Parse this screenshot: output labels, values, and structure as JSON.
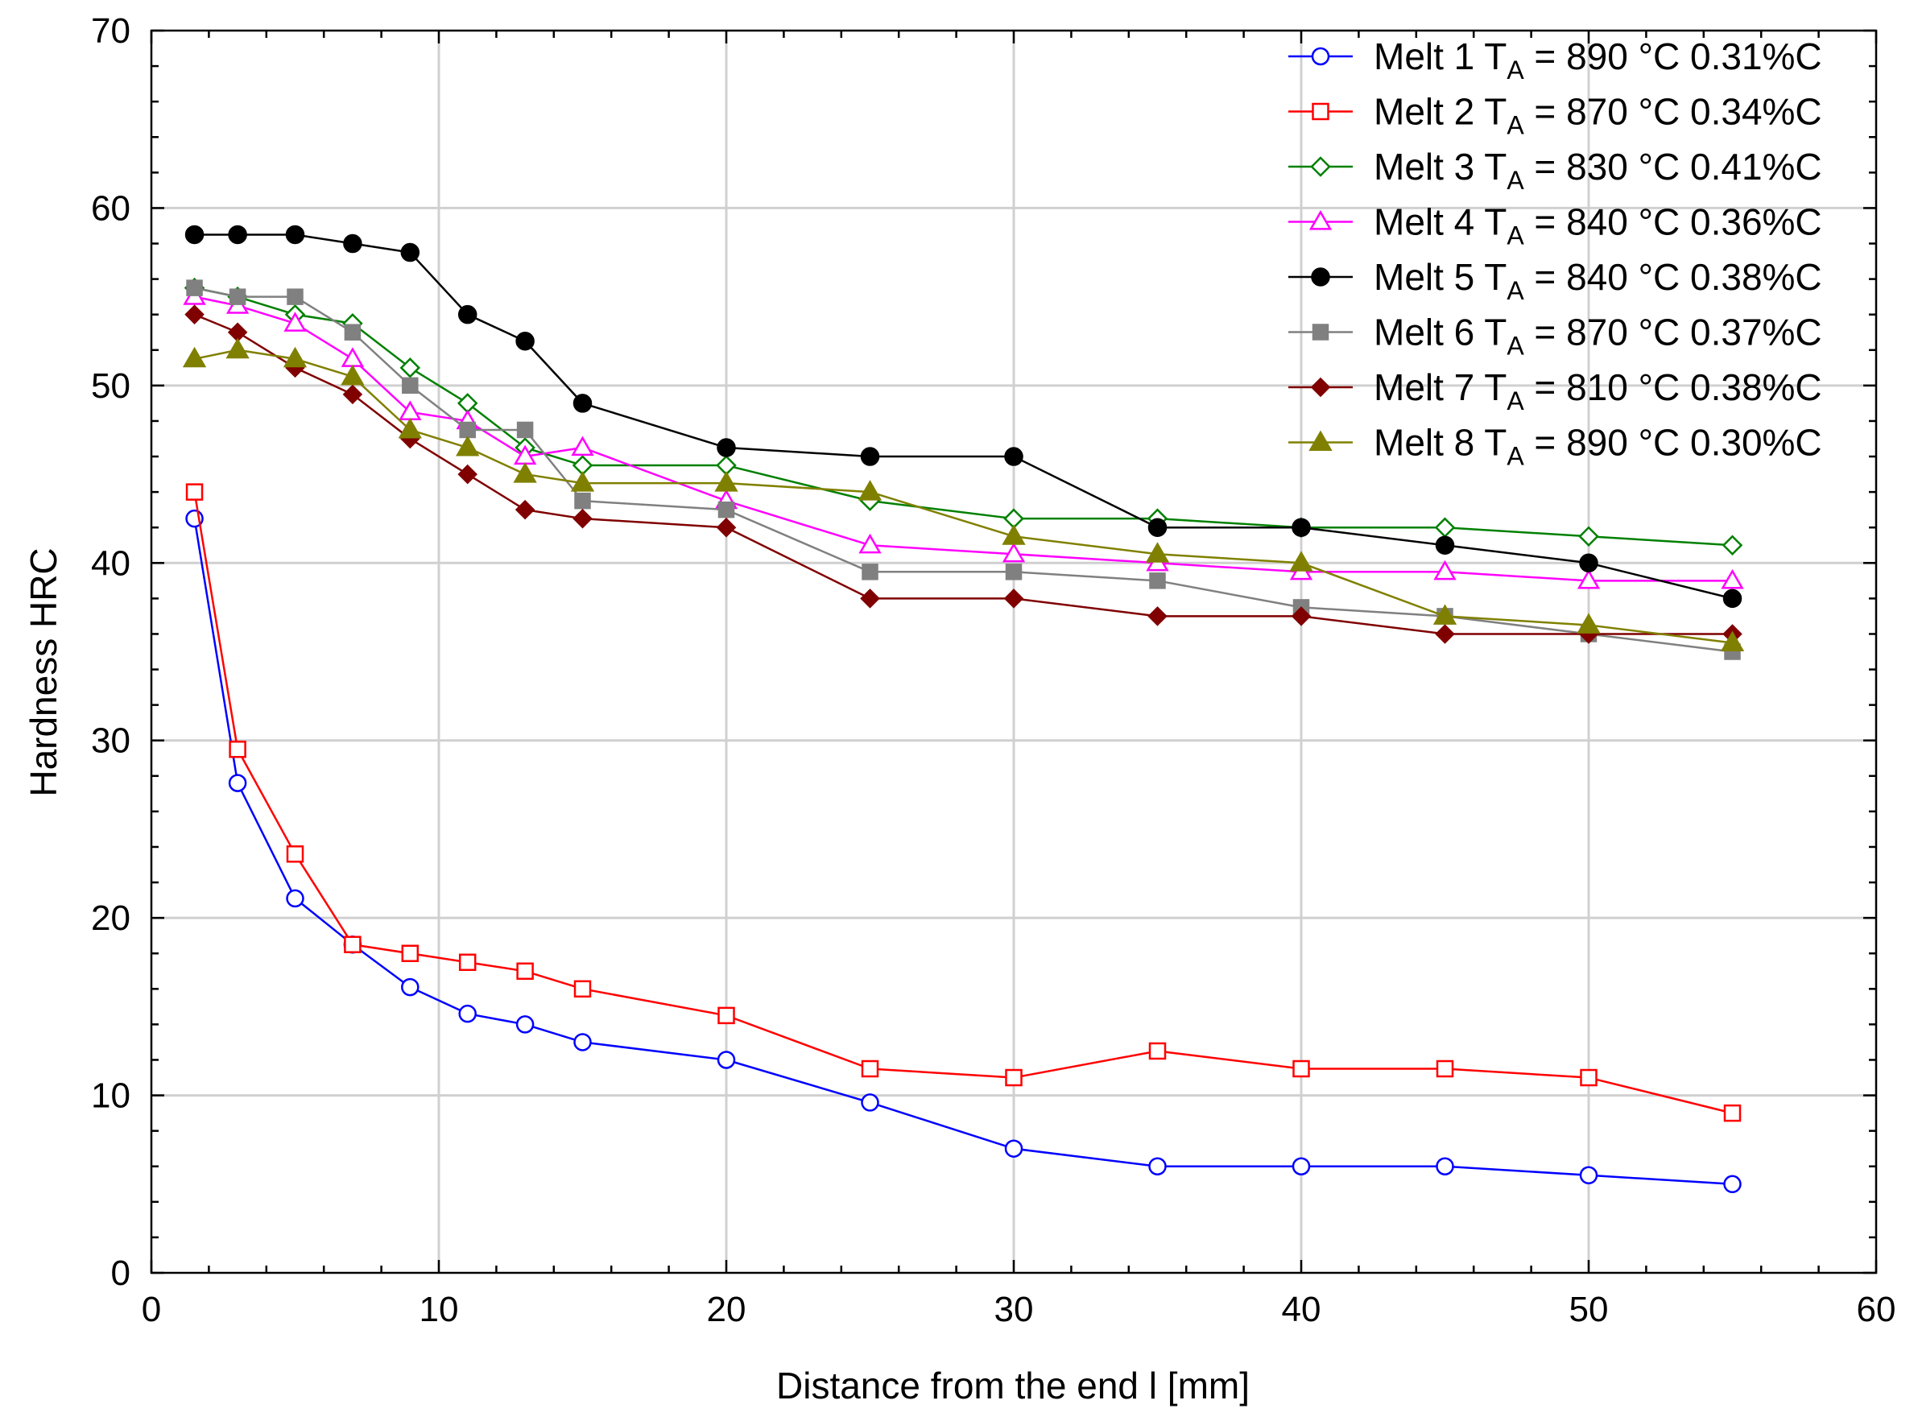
{
  "chart_data": {
    "type": "line",
    "title": "",
    "xlabel": "Distance from the end l [mm]",
    "ylabel": "Hardness HRC",
    "xlim": [
      0,
      60
    ],
    "ylim": [
      0,
      70
    ],
    "xticks": [
      0,
      10,
      20,
      30,
      40,
      50,
      60
    ],
    "yticks": [
      0,
      10,
      20,
      30,
      40,
      50,
      60,
      70
    ],
    "grid": true,
    "legend_position": "top-right",
    "x": [
      1.5,
      3,
      5,
      7,
      9,
      11,
      13,
      15,
      20,
      25,
      30,
      35,
      40,
      45,
      50,
      55
    ],
    "series": [
      {
        "name": "Melt 1",
        "legend_prefix": "Melt 1 T",
        "legend_sub": "A",
        "legend_suffix": " = 890 °C 0.31%C",
        "color": "#0000ff",
        "marker": "circle-open",
        "values": [
          42.5,
          27.6,
          21.1,
          18.5,
          16.1,
          14.6,
          14.0,
          13.0,
          12.0,
          9.6,
          7.0,
          6.0,
          6.0,
          6.0,
          5.5,
          5.0
        ]
      },
      {
        "name": "Melt 2",
        "legend_prefix": "Melt 2 T",
        "legend_sub": "A",
        "legend_suffix": " = 870 °C 0.34%C",
        "color": "#ff0000",
        "marker": "square-open",
        "values": [
          44.0,
          29.5,
          23.6,
          18.5,
          18.0,
          17.5,
          17.0,
          16.0,
          14.5,
          11.5,
          11.0,
          12.5,
          11.5,
          11.5,
          11.0,
          9.0
        ]
      },
      {
        "name": "Melt 3",
        "legend_prefix": "Melt 3 T",
        "legend_sub": "A",
        "legend_suffix": " = 830 °C 0.41%C",
        "color": "#008000",
        "marker": "diamond-open",
        "values": [
          55.5,
          55.0,
          54.0,
          53.5,
          51.0,
          49.0,
          46.5,
          45.5,
          45.5,
          43.5,
          42.5,
          42.5,
          42.0,
          42.0,
          41.5,
          41.0
        ]
      },
      {
        "name": "Melt 4",
        "legend_prefix": "Melt 4 T",
        "legend_sub": "A",
        "legend_suffix": " = 840 °C 0.36%C",
        "color": "#ff00ff",
        "marker": "triangle-open",
        "values": [
          55.0,
          54.5,
          53.5,
          51.5,
          48.5,
          48.0,
          46.0,
          46.5,
          43.5,
          41.0,
          40.5,
          40.0,
          39.5,
          39.5,
          39.0,
          39.0
        ]
      },
      {
        "name": "Melt 5",
        "legend_prefix": "Melt 5 T",
        "legend_sub": "A",
        "legend_suffix": " = 840 °C 0.38%C",
        "color": "#000000",
        "marker": "circle-filled",
        "values": [
          58.5,
          58.5,
          58.5,
          58.0,
          57.5,
          54.0,
          52.5,
          49.0,
          46.5,
          46.0,
          46.0,
          42.0,
          42.0,
          41.0,
          40.0,
          38.0
        ]
      },
      {
        "name": "Melt 6",
        "legend_prefix": "Melt 6 T",
        "legend_sub": "A",
        "legend_suffix": " = 870 °C 0.37%C",
        "color": "#808080",
        "marker": "square-filled",
        "values": [
          55.5,
          55.0,
          55.0,
          53.0,
          50.0,
          47.5,
          47.5,
          43.5,
          43.0,
          39.5,
          39.5,
          39.0,
          37.5,
          37.0,
          36.0,
          35.0
        ]
      },
      {
        "name": "Melt 7",
        "legend_prefix": "Melt 7 T",
        "legend_sub": "A",
        "legend_suffix": " = 810 °C 0.38%C",
        "color": "#800000",
        "marker": "diamond-filled",
        "values": [
          54.0,
          53.0,
          51.0,
          49.5,
          47.0,
          45.0,
          43.0,
          42.5,
          42.0,
          38.0,
          38.0,
          37.0,
          37.0,
          36.0,
          36.0,
          36.0
        ]
      },
      {
        "name": "Melt 8",
        "legend_prefix": "Melt 8 T",
        "legend_sub": "A",
        "legend_suffix": " = 890 °C 0.30%C",
        "color": "#808000",
        "marker": "triangle-filled",
        "values": [
          51.5,
          52.0,
          51.5,
          50.5,
          47.5,
          46.5,
          45.0,
          44.5,
          44.5,
          44.0,
          41.5,
          40.5,
          40.0,
          37.0,
          36.5,
          35.5
        ]
      }
    ]
  }
}
